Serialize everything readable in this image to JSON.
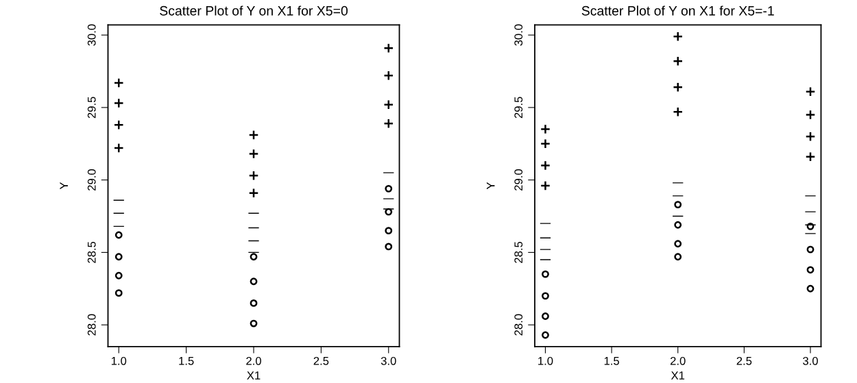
{
  "chart_data": [
    {
      "type": "scatter",
      "title": "Scatter Plot of Y on X1 for X5=0",
      "xlabel": "X1",
      "ylabel": "Y",
      "xlim": [
        0.92,
        3.08
      ],
      "xticks": [
        {
          "value": 1,
          "label": "1.0"
        },
        {
          "value": 1.5,
          "label": "1.5"
        },
        {
          "value": 2,
          "label": "2.0"
        },
        {
          "value": 2.5,
          "label": "2.5"
        },
        {
          "value": 3,
          "label": "3.0"
        }
      ],
      "ylim": [
        27.85,
        30.07
      ],
      "yticks": [
        {
          "value": 28,
          "label": "28.0"
        },
        {
          "value": 28.5,
          "label": "28.5"
        },
        {
          "value": 29,
          "label": "29.0"
        },
        {
          "value": 29.5,
          "label": "29.5"
        },
        {
          "value": 30,
          "label": "30.0"
        }
      ],
      "grid": false,
      "legend": false,
      "series": [
        {
          "marker": "plus",
          "color": "#000000",
          "x": [
            1,
            1,
            1,
            1,
            2,
            2,
            2,
            2,
            3,
            3,
            3,
            3
          ],
          "values": [
            29.67,
            29.53,
            29.38,
            29.22,
            29.31,
            29.18,
            29.03,
            28.91,
            29.91,
            29.72,
            29.52,
            29.39
          ]
        },
        {
          "color": "#000000",
          "x": [
            1,
            1,
            1,
            2,
            2,
            2,
            2,
            3,
            3,
            3
          ],
          "values": [
            28.86,
            28.77,
            28.68,
            28.77,
            28.67,
            28.58,
            28.5,
            29.05,
            28.87,
            28.8
          ]
        },
        {
          "marker": "circle",
          "color": "#000000",
          "x": [
            1,
            1,
            1,
            1,
            2,
            2,
            2,
            2,
            3,
            3,
            3,
            3
          ],
          "values": [
            28.62,
            28.47,
            28.34,
            28.22,
            28.47,
            28.3,
            28.15,
            28.01,
            28.94,
            28.78,
            28.65,
            28.54
          ]
        }
      ]
    },
    {
      "type": "scatter",
      "title": "Scatter Plot of Y on X1 for X5=-1",
      "xlabel": "X1",
      "ylabel": "Y",
      "xlim": [
        0.92,
        3.08
      ],
      "xticks": [
        {
          "value": 1,
          "label": "1.0"
        },
        {
          "value": 1.5,
          "label": "1.5"
        },
        {
          "value": 2,
          "label": "2.0"
        },
        {
          "value": 2.5,
          "label": "2.5"
        },
        {
          "value": 3,
          "label": "3.0"
        }
      ],
      "ylim": [
        27.85,
        30.07
      ],
      "yticks": [
        {
          "value": 28,
          "label": "28.0"
        },
        {
          "value": 28.5,
          "label": "28.5"
        },
        {
          "value": 29,
          "label": "29.0"
        },
        {
          "value": 29.5,
          "label": "29.5"
        },
        {
          "value": 30,
          "label": "30.0"
        }
      ],
      "grid": false,
      "legend": false,
      "series": [
        {
          "marker": "plus",
          "color": "#000000",
          "x": [
            1,
            1,
            1,
            1,
            2,
            2,
            2,
            2,
            3,
            3,
            3,
            3
          ],
          "values": [
            29.35,
            29.25,
            29.1,
            28.96,
            29.99,
            29.82,
            29.64,
            29.47,
            29.61,
            29.45,
            29.3,
            29.16
          ]
        },
        {
          "color": "#000000",
          "x": [
            1,
            1,
            1,
            1,
            2,
            2,
            2,
            3,
            3,
            3,
            3
          ],
          "values": [
            28.7,
            28.6,
            28.52,
            28.45,
            28.98,
            28.89,
            28.75,
            28.89,
            28.78,
            28.69,
            28.63
          ]
        },
        {
          "marker": "circle",
          "color": "#000000",
          "x": [
            1,
            1,
            1,
            1,
            2,
            2,
            2,
            2,
            3,
            3,
            3,
            3
          ],
          "values": [
            28.35,
            28.2,
            28.06,
            27.93,
            28.83,
            28.69,
            28.56,
            28.47,
            28.68,
            28.52,
            28.38,
            28.25
          ]
        }
      ]
    }
  ]
}
